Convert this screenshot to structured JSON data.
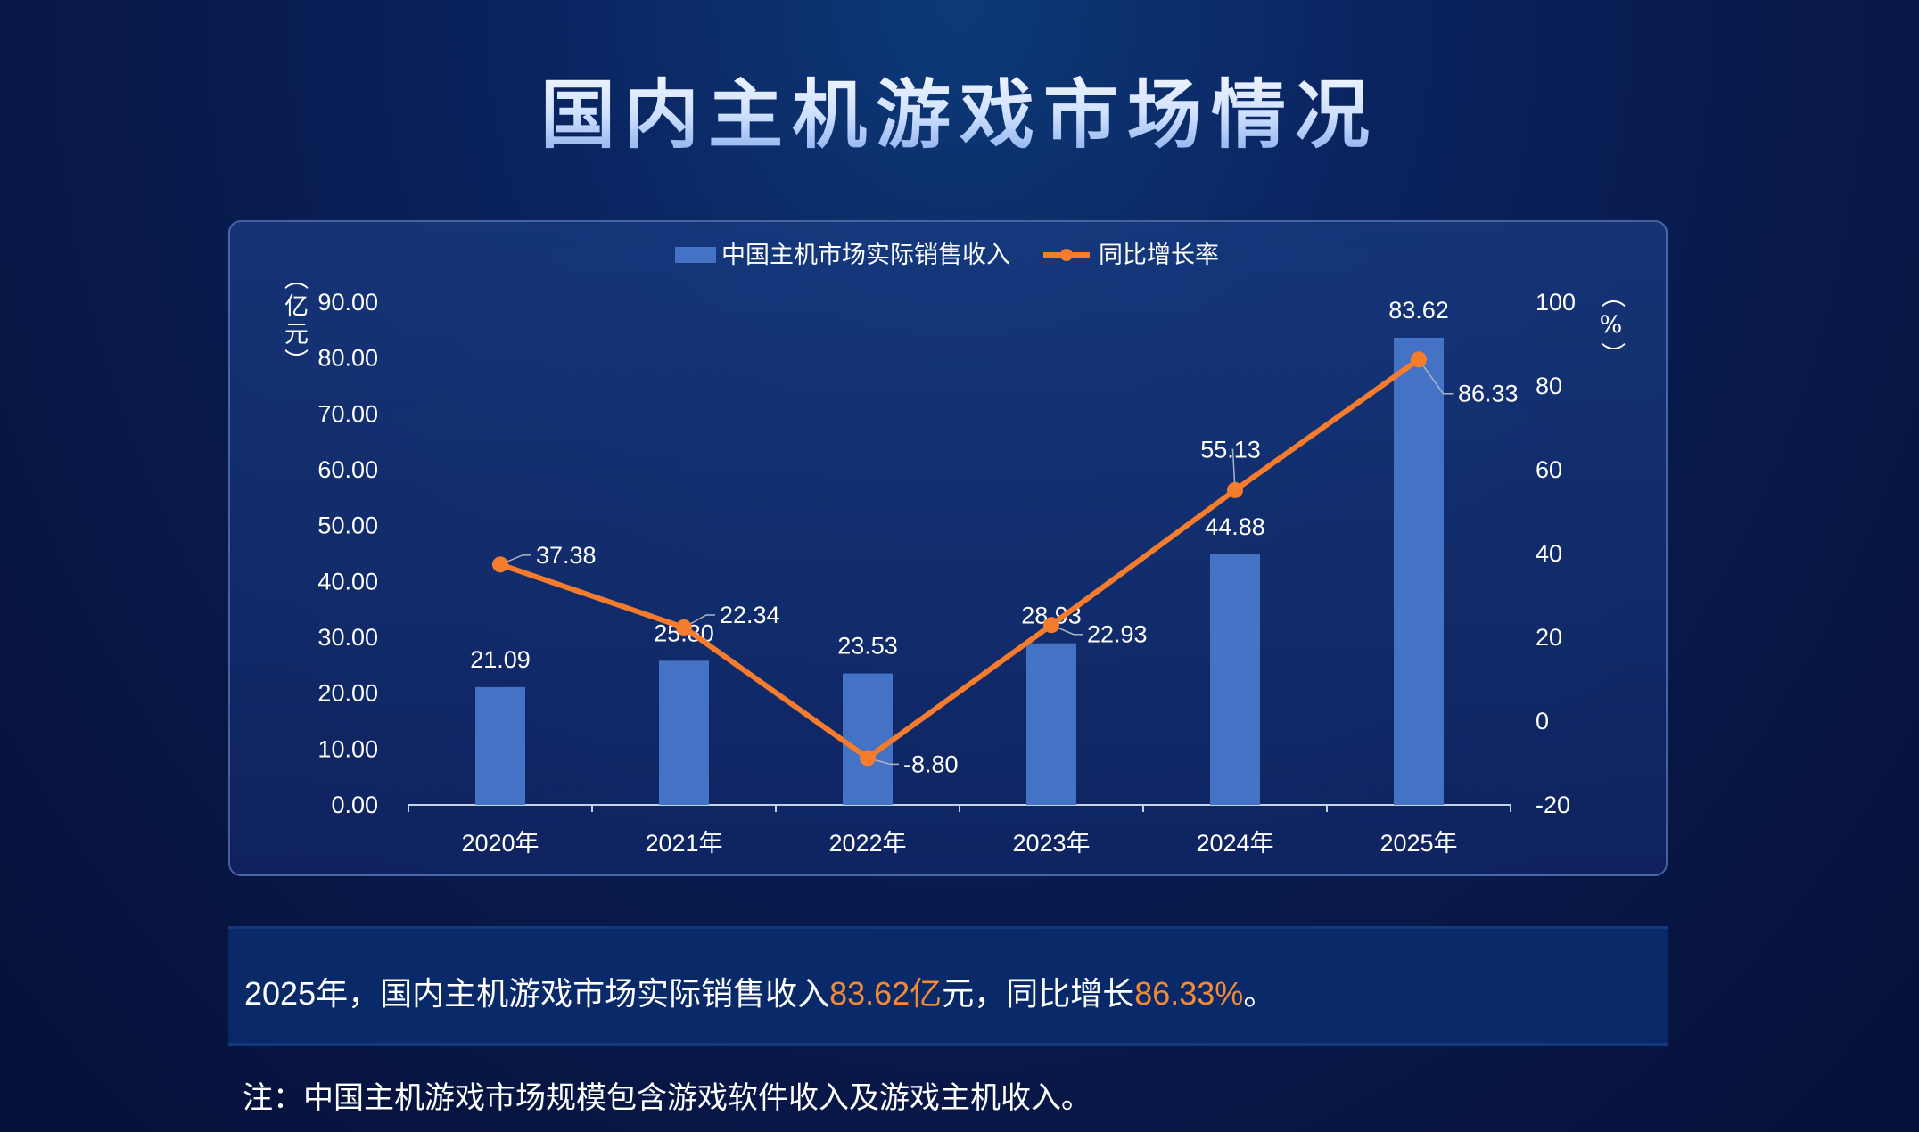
{
  "title": "国内主机游戏市场情况",
  "chart_data": {
    "type": "bar+line",
    "categories": [
      "2020年",
      "2021年",
      "2022年",
      "2023年",
      "2024年",
      "2025年"
    ],
    "series": [
      {
        "name": "中国主机市场实际销售收入",
        "type": "bar",
        "axis": "left",
        "color": "#4472c4",
        "values": [
          21.09,
          25.8,
          23.53,
          28.93,
          44.88,
          83.62
        ],
        "labels": [
          "21.09",
          "25.80",
          "23.53",
          "28.93",
          "44.88",
          "83.62"
        ]
      },
      {
        "name": "同比增长率",
        "type": "line",
        "axis": "right",
        "color": "#f47c2c",
        "values": [
          37.38,
          22.34,
          -8.8,
          22.93,
          55.13,
          86.33
        ],
        "labels": [
          "37.38",
          "22.34",
          "-8.80",
          "22.93",
          "55.13",
          "86.33"
        ]
      }
    ],
    "y_left": {
      "label": "（亿元）",
      "range": [
        0,
        90
      ],
      "ticks": [
        "0.00",
        "10.00",
        "20.00",
        "30.00",
        "40.00",
        "50.00",
        "60.00",
        "70.00",
        "80.00",
        "90.00"
      ]
    },
    "y_right": {
      "label": "（%）",
      "range": [
        -20,
        100
      ],
      "ticks": [
        "-20",
        "0",
        "20",
        "40",
        "60",
        "80",
        "100"
      ]
    },
    "legend": "top-center",
    "grid": false
  },
  "summary": {
    "p1": "2025年，国内主机游戏市场实际销售收入",
    "v1": "83.62亿",
    "p2": "元，同比增长",
    "v2": "86.33%",
    "p3": "。"
  },
  "note": "注：中国主机游戏市场规模包含游戏软件收入及游戏主机收入。"
}
